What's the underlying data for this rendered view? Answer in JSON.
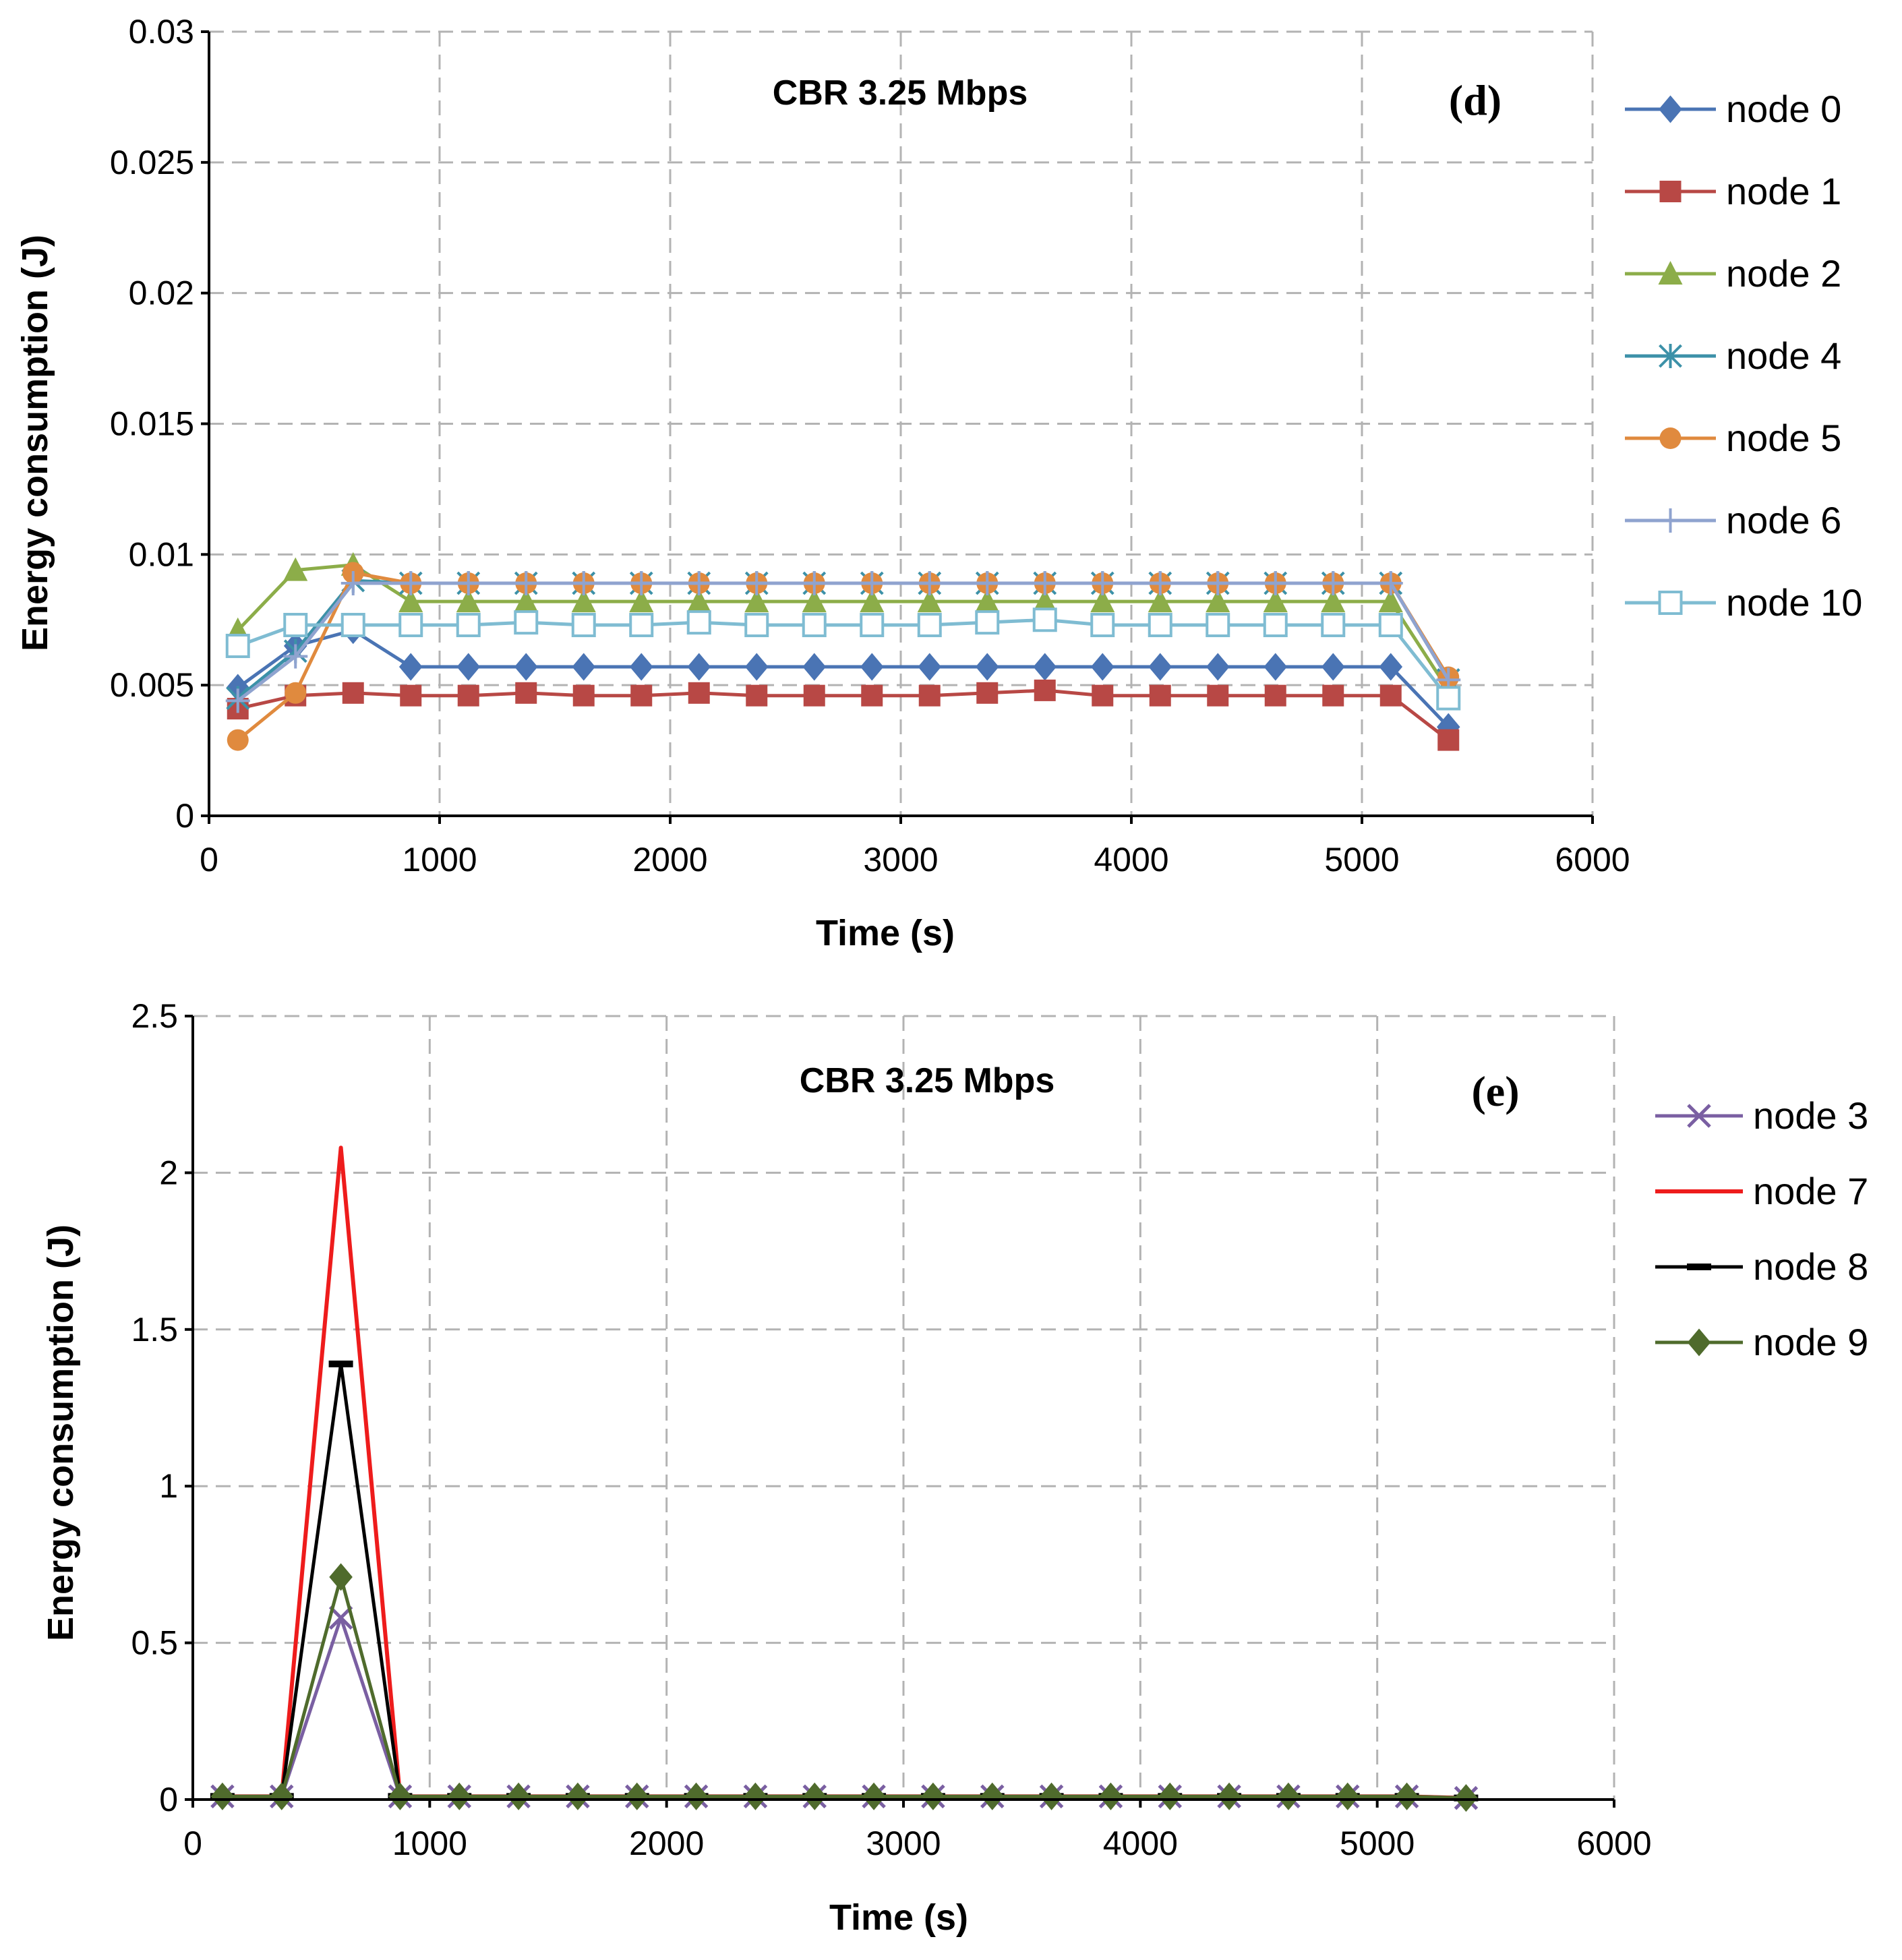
{
  "chart_data": [
    {
      "id": "d",
      "type": "line",
      "title": "CBR 3.25 Mbps",
      "panel_label": "(d)",
      "xlabel": "Time (s)",
      "ylabel": "Energy consumption (J)",
      "xlim": [
        0,
        6000
      ],
      "ylim": [
        0,
        0.03
      ],
      "xticks": [
        "0",
        "1000",
        "2000",
        "3000",
        "4000",
        "5000",
        "6000"
      ],
      "yticks": [
        "0",
        "0.005",
        "0.01",
        "0.015",
        "0.02",
        "0.025",
        "0.03"
      ],
      "grid": true,
      "legend_position": "right",
      "x": [
        125,
        375,
        625,
        875,
        1125,
        1375,
        1625,
        1875,
        2125,
        2375,
        2625,
        2875,
        3125,
        3375,
        3625,
        3875,
        4125,
        4375,
        4625,
        4875,
        5125,
        5375
      ],
      "series": [
        {
          "name": "node 0",
          "color": "#4a74b4",
          "marker": "diamond",
          "values": [
            0.0049,
            0.0065,
            0.0071,
            0.0057,
            0.0057,
            0.0057,
            0.0057,
            0.0057,
            0.0057,
            0.0057,
            0.0057,
            0.0057,
            0.0057,
            0.0057,
            0.0057,
            0.0057,
            0.0057,
            0.0057,
            0.0057,
            0.0057,
            0.0057,
            0.0034
          ]
        },
        {
          "name": "node 1",
          "color": "#b84845",
          "marker": "square",
          "values": [
            0.0041,
            0.0046,
            0.0047,
            0.0046,
            0.0046,
            0.0047,
            0.0046,
            0.0046,
            0.0047,
            0.0046,
            0.0046,
            0.0046,
            0.0046,
            0.0047,
            0.0048,
            0.0046,
            0.0046,
            0.0046,
            0.0046,
            0.0046,
            0.0046,
            0.0029
          ]
        },
        {
          "name": "node 2",
          "color": "#8cad49",
          "marker": "triangle",
          "values": [
            0.0071,
            0.0094,
            0.0096,
            0.0082,
            0.0082,
            0.0082,
            0.0082,
            0.0082,
            0.0082,
            0.0082,
            0.0082,
            0.0082,
            0.0082,
            0.0082,
            0.0082,
            0.0082,
            0.0082,
            0.0082,
            0.0082,
            0.0082,
            0.0082,
            0.0048
          ]
        },
        {
          "name": "node 4",
          "color": "#3c91a8",
          "marker": "asterisk",
          "values": [
            0.0045,
            0.0063,
            0.009,
            0.0089,
            0.0089,
            0.0089,
            0.0089,
            0.0089,
            0.0089,
            0.0089,
            0.0089,
            0.0089,
            0.0089,
            0.0089,
            0.0089,
            0.0089,
            0.0089,
            0.0089,
            0.0089,
            0.0089,
            0.0089,
            0.0052
          ]
        },
        {
          "name": "node 5",
          "color": "#e08a3e",
          "marker": "circle",
          "values": [
            0.0029,
            0.0047,
            0.0093,
            0.0089,
            0.0089,
            0.0089,
            0.0089,
            0.0089,
            0.0089,
            0.0089,
            0.0089,
            0.0089,
            0.0089,
            0.0089,
            0.0089,
            0.0089,
            0.0089,
            0.0089,
            0.0089,
            0.0089,
            0.0089,
            0.0053
          ]
        },
        {
          "name": "node 6",
          "color": "#8fa3cf",
          "marker": "plus",
          "values": [
            0.0044,
            0.0061,
            0.0089,
            0.0089,
            0.0089,
            0.0089,
            0.0089,
            0.0089,
            0.0089,
            0.0089,
            0.0089,
            0.0089,
            0.0089,
            0.0089,
            0.0089,
            0.0089,
            0.0089,
            0.0089,
            0.0089,
            0.0089,
            0.0089,
            0.0052
          ]
        },
        {
          "name": "node 10",
          "color": "#7fbcd2",
          "marker": "open-square",
          "values": [
            0.0065,
            0.0073,
            0.0073,
            0.0073,
            0.0073,
            0.0074,
            0.0073,
            0.0073,
            0.0074,
            0.0073,
            0.0073,
            0.0073,
            0.0073,
            0.0074,
            0.0075,
            0.0073,
            0.0073,
            0.0073,
            0.0073,
            0.0073,
            0.0073,
            0.0045
          ]
        }
      ]
    },
    {
      "id": "e",
      "type": "line",
      "title": "CBR 3.25 Mbps",
      "panel_label": "(e)",
      "xlabel": "Time (s)",
      "ylabel": "Energy consumption (J)",
      "xlim": [
        0,
        6000
      ],
      "ylim": [
        0,
        2.5
      ],
      "xticks": [
        "0",
        "1000",
        "2000",
        "3000",
        "4000",
        "5000",
        "6000"
      ],
      "yticks": [
        "0",
        "0.5",
        "1",
        "1.5",
        "2",
        "2.5"
      ],
      "grid": true,
      "legend_position": "right",
      "x": [
        125,
        375,
        625,
        875,
        1125,
        1375,
        1625,
        1875,
        2125,
        2375,
        2625,
        2875,
        3125,
        3375,
        3625,
        3875,
        4125,
        4375,
        4625,
        4875,
        5125,
        5375
      ],
      "series": [
        {
          "name": "node 3",
          "color": "#7a5fa2",
          "marker": "x",
          "values": [
            0.01,
            0.01,
            0.58,
            0.01,
            0.01,
            0.01,
            0.01,
            0.01,
            0.01,
            0.01,
            0.01,
            0.01,
            0.01,
            0.01,
            0.01,
            0.01,
            0.01,
            0.01,
            0.01,
            0.01,
            0.01,
            0.005
          ]
        },
        {
          "name": "node 7",
          "color": "#ee1c1c",
          "marker": "none",
          "values": [
            0.01,
            0.01,
            2.08,
            0.01,
            0.01,
            0.01,
            0.01,
            0.01,
            0.01,
            0.01,
            0.01,
            0.01,
            0.01,
            0.01,
            0.01,
            0.01,
            0.01,
            0.01,
            0.01,
            0.01,
            0.01,
            0.005
          ]
        },
        {
          "name": "node 8",
          "color": "#000000",
          "marker": "dash",
          "values": [
            0.01,
            0.01,
            1.39,
            0.01,
            0.01,
            0.01,
            0.01,
            0.01,
            0.01,
            0.01,
            0.01,
            0.01,
            0.01,
            0.01,
            0.01,
            0.01,
            0.01,
            0.01,
            0.01,
            0.01,
            0.01,
            0.005
          ]
        },
        {
          "name": "node 9",
          "color": "#4f6b2c",
          "marker": "diamond",
          "values": [
            0.01,
            0.01,
            0.71,
            0.01,
            0.01,
            0.01,
            0.01,
            0.01,
            0.01,
            0.01,
            0.01,
            0.01,
            0.01,
            0.01,
            0.01,
            0.01,
            0.01,
            0.01,
            0.01,
            0.01,
            0.01,
            0.005
          ]
        }
      ]
    }
  ]
}
